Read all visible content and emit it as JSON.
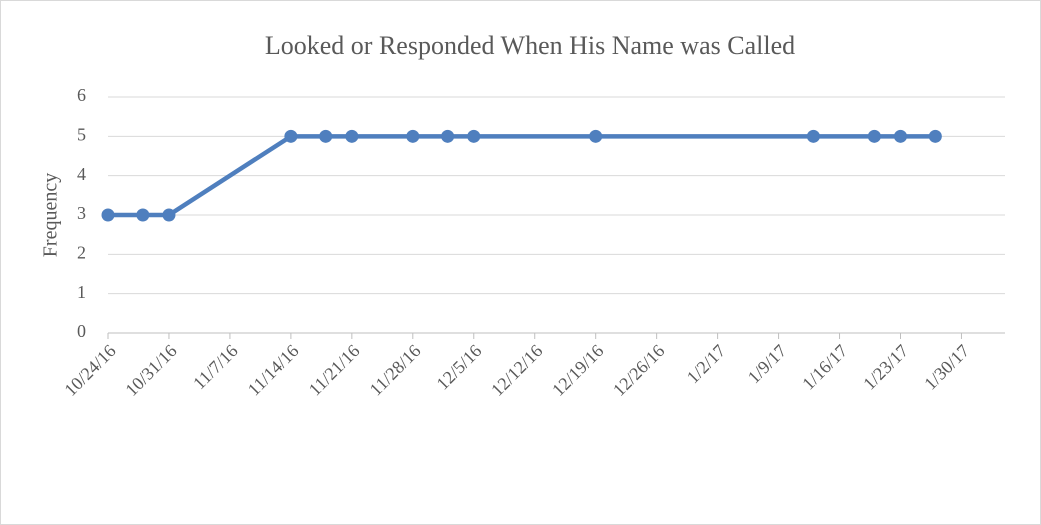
{
  "chart_data": {
    "type": "line",
    "title": "Looked or Responded When His Name was Called",
    "y_label": "Frequency",
    "x": [
      "2016-10-24",
      "2016-10-28",
      "2016-10-31",
      "2016-11-14",
      "2016-11-18",
      "2016-11-21",
      "2016-11-28",
      "2016-12-02",
      "2016-12-05",
      "2016-12-19",
      "2017-01-13",
      "2017-01-20",
      "2017-01-23",
      "2017-01-27"
    ],
    "series": [
      {
        "name": "Frequency",
        "color": "#4f7fbe",
        "values": [
          3,
          3,
          3,
          5,
          5,
          5,
          5,
          5,
          5,
          5,
          5,
          5,
          5,
          5
        ]
      }
    ],
    "xlim": [
      "2016-10-24",
      "2017-02-04"
    ],
    "xticks": [
      {
        "value": "2016-10-24",
        "label": "10/24/16"
      },
      {
        "value": "2016-10-31",
        "label": "10/31/16"
      },
      {
        "value": "2016-11-07",
        "label": "11/7/16"
      },
      {
        "value": "2016-11-14",
        "label": "11/14/16"
      },
      {
        "value": "2016-11-21",
        "label": "11/21/16"
      },
      {
        "value": "2016-11-28",
        "label": "11/28/16"
      },
      {
        "value": "2016-12-05",
        "label": "12/5/16"
      },
      {
        "value": "2016-12-12",
        "label": "12/12/16"
      },
      {
        "value": "2016-12-19",
        "label": "12/19/16"
      },
      {
        "value": "2016-12-26",
        "label": "12/26/16"
      },
      {
        "value": "2017-01-02",
        "label": "1/2/17"
      },
      {
        "value": "2017-01-09",
        "label": "1/9/17"
      },
      {
        "value": "2017-01-16",
        "label": "1/16/17"
      },
      {
        "value": "2017-01-23",
        "label": "1/23/17"
      },
      {
        "value": "2017-01-30",
        "label": "1/30/17"
      }
    ],
    "ylim": [
      0,
      6
    ],
    "yticks": [
      0,
      1,
      2,
      3,
      4,
      5,
      6
    ],
    "grid": true
  }
}
